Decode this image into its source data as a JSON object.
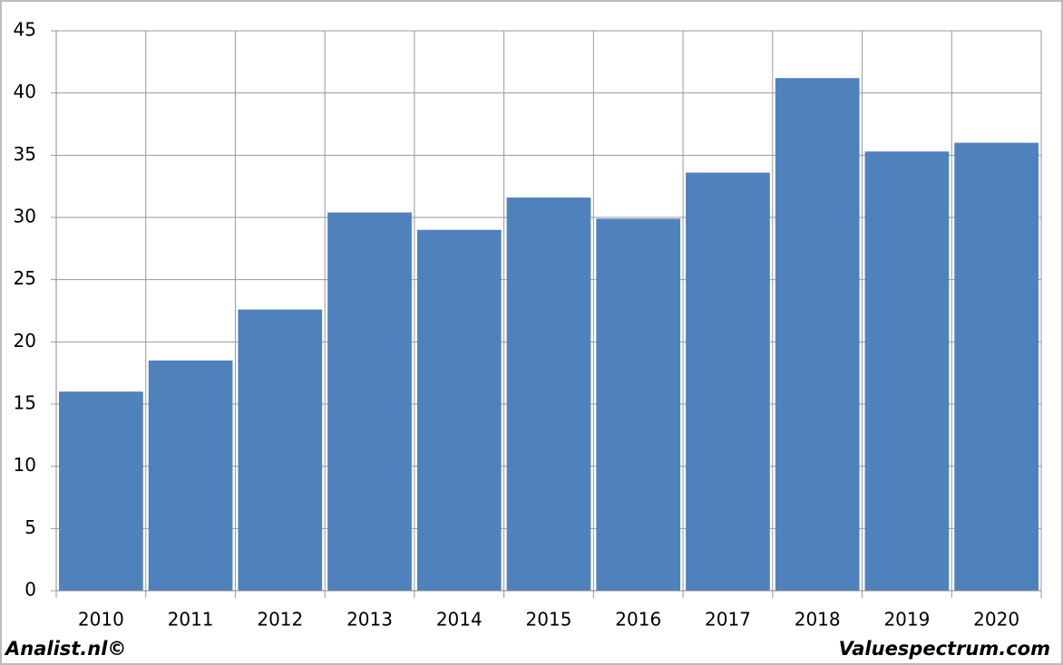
{
  "chart_data": {
    "type": "bar",
    "categories": [
      "2010",
      "2011",
      "2012",
      "2013",
      "2014",
      "2015",
      "2016",
      "2017",
      "2018",
      "2019",
      "2020"
    ],
    "values": [
      16.0,
      18.5,
      22.6,
      30.4,
      29.0,
      31.6,
      29.9,
      33.6,
      41.2,
      35.3,
      36.0
    ],
    "color": "#4f81bd",
    "ylim": [
      0,
      45
    ],
    "yticks": [
      0,
      5,
      10,
      15,
      20,
      25,
      30,
      35,
      40,
      45
    ],
    "grid": true,
    "source_left": "Analist.nl©",
    "source_right": "Valuespectrum.com"
  }
}
